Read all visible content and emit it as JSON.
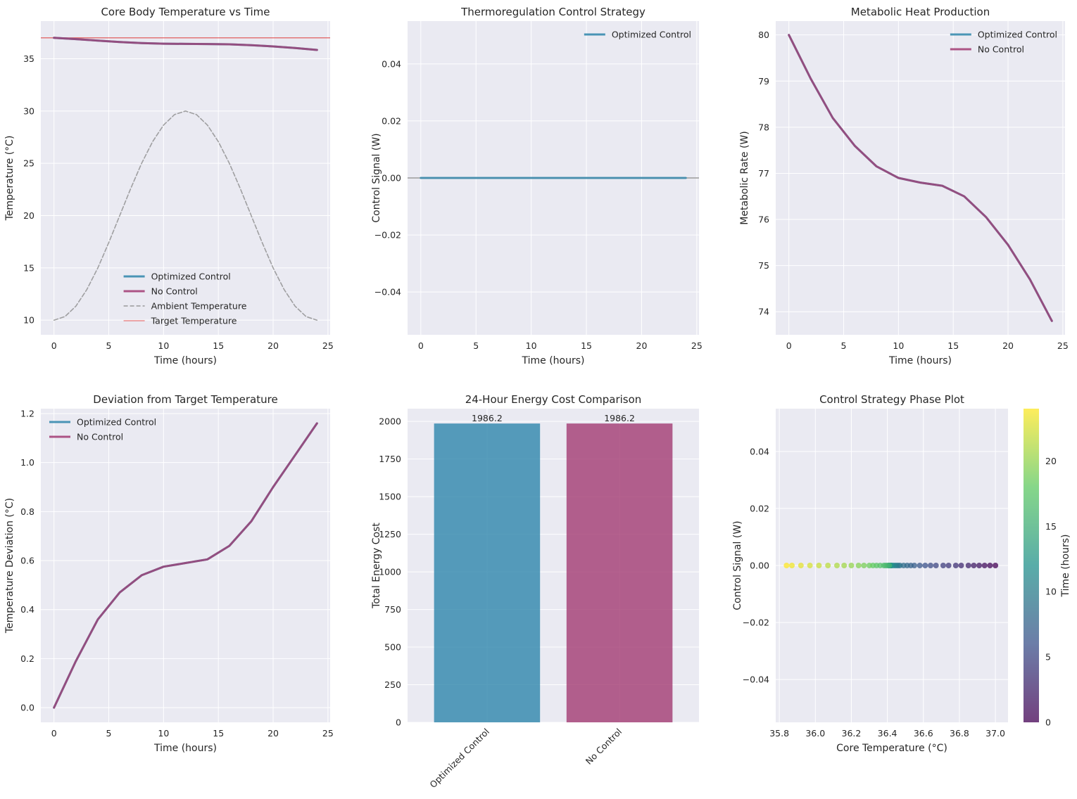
{
  "colors": {
    "optimized": "#2e86ab",
    "no_control": "#a23b72",
    "ambient": "#8c8c8c",
    "target": "#e03c3c",
    "plot_bg": "#eaeaf2",
    "grid": "#ffffff",
    "zero_line": "#9e9e9e"
  },
  "chart_data": [
    {
      "id": "p1",
      "type": "line",
      "title": "Core Body Temperature vs Time",
      "xlabel": "Time (hours)",
      "ylabel": "Temperature (°C)",
      "xlim": [
        -1.2,
        25.2
      ],
      "ylim": [
        8.6,
        38.6
      ],
      "xticks": [
        0,
        5,
        10,
        15,
        20,
        25
      ],
      "yticks": [
        10,
        15,
        20,
        25,
        30,
        35
      ],
      "legend_loc": "lower-center",
      "hlines": [
        {
          "name": "Target Temperature",
          "y": 37.0,
          "color": "target"
        }
      ],
      "series": [
        {
          "name": "Optimized Control",
          "color": "optimized",
          "style": "solid-thick",
          "x": [
            0,
            2,
            4,
            6,
            8,
            10,
            12,
            14,
            16,
            18,
            20,
            22,
            24
          ],
          "y": [
            37.0,
            36.88,
            36.74,
            36.6,
            36.5,
            36.44,
            36.42,
            36.41,
            36.38,
            36.3,
            36.18,
            36.03,
            35.84
          ]
        },
        {
          "name": "No Control",
          "color": "no_control",
          "style": "solid-thick",
          "x": [
            0,
            2,
            4,
            6,
            8,
            10,
            12,
            14,
            16,
            18,
            20,
            22,
            24
          ],
          "y": [
            37.0,
            36.88,
            36.74,
            36.6,
            36.5,
            36.44,
            36.42,
            36.41,
            36.38,
            36.3,
            36.18,
            36.03,
            35.84
          ]
        },
        {
          "name": "Ambient Temperature",
          "color": "ambient",
          "style": "dashed",
          "x": [
            0,
            1,
            2,
            3,
            4,
            5,
            6,
            7,
            8,
            9,
            10,
            11,
            12,
            13,
            14,
            15,
            16,
            17,
            18,
            19,
            20,
            21,
            22,
            23,
            24
          ],
          "y": [
            10.0,
            10.34,
            11.34,
            12.93,
            15.0,
            17.41,
            20.0,
            22.59,
            25.0,
            27.07,
            28.66,
            29.66,
            30.0,
            29.66,
            28.66,
            27.07,
            25.0,
            22.59,
            20.0,
            17.41,
            15.0,
            12.93,
            11.34,
            10.34,
            10.0
          ]
        }
      ]
    },
    {
      "id": "p2",
      "type": "line",
      "title": "Thermoregulation Control Strategy",
      "xlabel": "Time (hours)",
      "ylabel": "Control Signal (W)",
      "xlim": [
        -1.2,
        25.2
      ],
      "ylim": [
        -0.055,
        0.055
      ],
      "xticks": [
        0,
        5,
        10,
        15,
        20,
        25
      ],
      "yticks": [
        -0.04,
        -0.02,
        0.0,
        0.02,
        0.04
      ],
      "ytick_labels": [
        "−0.04",
        "−0.02",
        "0.00",
        "0.02",
        "0.04"
      ],
      "legend_loc": "top-right",
      "hlines": [
        {
          "name": "zero",
          "y": 0,
          "color": "zero_line",
          "full": true
        }
      ],
      "series": [
        {
          "name": "Optimized Control",
          "color": "optimized",
          "style": "solid-thick",
          "x": [
            0,
            24
          ],
          "y": [
            0,
            0
          ]
        }
      ]
    },
    {
      "id": "p3",
      "type": "line",
      "title": "Metabolic Heat Production",
      "xlabel": "Time (hours)",
      "ylabel": "Metabolic Rate (W)",
      "xlim": [
        -1.2,
        25.2
      ],
      "ylim": [
        73.5,
        80.3
      ],
      "xticks": [
        0,
        5,
        10,
        15,
        20,
        25
      ],
      "yticks": [
        74,
        75,
        76,
        77,
        78,
        79,
        80
      ],
      "legend_loc": "top-right",
      "series": [
        {
          "name": "Optimized Control",
          "color": "optimized",
          "style": "solid-thick",
          "x": [
            0,
            2,
            4,
            6,
            8,
            10,
            12,
            14,
            16,
            18,
            20,
            22,
            24
          ],
          "y": [
            80.0,
            79.05,
            78.2,
            77.6,
            77.15,
            76.9,
            76.8,
            76.73,
            76.5,
            76.05,
            75.45,
            74.7,
            73.8
          ]
        },
        {
          "name": "No Control",
          "color": "no_control",
          "style": "solid-thick",
          "x": [
            0,
            2,
            4,
            6,
            8,
            10,
            12,
            14,
            16,
            18,
            20,
            22,
            24
          ],
          "y": [
            80.0,
            79.05,
            78.2,
            77.6,
            77.15,
            76.9,
            76.8,
            76.73,
            76.5,
            76.05,
            75.45,
            74.7,
            73.8
          ]
        }
      ]
    },
    {
      "id": "p4",
      "type": "line",
      "title": "Deviation from Target Temperature",
      "xlabel": "Time (hours)",
      "ylabel": "Temperature Deviation (°C)",
      "xlim": [
        -1.2,
        25.2
      ],
      "ylim": [
        -0.06,
        1.22
      ],
      "xticks": [
        0,
        5,
        10,
        15,
        20,
        25
      ],
      "yticks": [
        0.0,
        0.2,
        0.4,
        0.6,
        0.8,
        1.0,
        1.2
      ],
      "ytick_labels": [
        "0.0",
        "0.2",
        "0.4",
        "0.6",
        "0.8",
        "1.0",
        "1.2"
      ],
      "legend_loc": "top-left",
      "series": [
        {
          "name": "Optimized Control",
          "color": "optimized",
          "style": "solid-thick",
          "x": [
            0,
            2,
            4,
            6,
            8,
            10,
            12,
            14,
            16,
            18,
            20,
            22,
            24
          ],
          "y": [
            0.0,
            0.19,
            0.36,
            0.47,
            0.54,
            0.575,
            0.59,
            0.605,
            0.66,
            0.76,
            0.9,
            1.03,
            1.16
          ]
        },
        {
          "name": "No Control",
          "color": "no_control",
          "style": "solid-thick",
          "x": [
            0,
            2,
            4,
            6,
            8,
            10,
            12,
            14,
            16,
            18,
            20,
            22,
            24
          ],
          "y": [
            0.0,
            0.19,
            0.36,
            0.47,
            0.54,
            0.575,
            0.59,
            0.605,
            0.66,
            0.76,
            0.9,
            1.03,
            1.16
          ]
        }
      ]
    },
    {
      "id": "p5",
      "type": "bar",
      "title": "24-Hour Energy Cost Comparison",
      "xlabel": "",
      "ylabel": "Total Energy Cost",
      "categories": [
        "Optimized Control",
        "No Control"
      ],
      "values": [
        1986.2,
        1986.2
      ],
      "value_labels": [
        "1986.2",
        "1986.2"
      ],
      "bar_colors": [
        "optimized",
        "no_control"
      ],
      "ylim": [
        0,
        2085
      ],
      "yticks": [
        0,
        250,
        500,
        750,
        1000,
        1250,
        1500,
        1750,
        2000
      ],
      "xtick_rotation": 45
    },
    {
      "id": "p6",
      "type": "scatter",
      "title": "Control Strategy Phase Plot",
      "xlabel": "Core Temperature (°C)",
      "ylabel": "Control Signal (W)",
      "xlim": [
        35.78,
        37.07
      ],
      "ylim": [
        -0.055,
        0.055
      ],
      "xticks": [
        35.8,
        36.0,
        36.2,
        36.4,
        36.6,
        36.8,
        37.0
      ],
      "xtick_labels": [
        "35.8",
        "36.0",
        "36.2",
        "36.4",
        "36.6",
        "36.8",
        "37.0"
      ],
      "yticks": [
        -0.04,
        -0.02,
        0.0,
        0.02,
        0.04
      ],
      "ytick_labels": [
        "−0.04",
        "−0.02",
        "0.00",
        "0.02",
        "0.04"
      ],
      "colorbar": {
        "label": "Time (hours)",
        "min": 0,
        "max": 24,
        "ticks": [
          0,
          5,
          10,
          15,
          20
        ],
        "colormap": "viridis"
      },
      "points": {
        "x": [
          37.0,
          36.97,
          36.94,
          36.91,
          36.88,
          36.85,
          36.81,
          36.78,
          36.74,
          36.71,
          36.67,
          36.64,
          36.61,
          36.58,
          36.55,
          36.53,
          36.51,
          36.49,
          36.47,
          36.46,
          36.45,
          36.44,
          36.43,
          36.42,
          36.42,
          36.42,
          36.41,
          36.41,
          36.41,
          36.41,
          36.41,
          36.4,
          36.39,
          36.38,
          36.36,
          36.34,
          36.32,
          36.3,
          36.27,
          36.24,
          36.2,
          36.16,
          36.12,
          36.07,
          36.02,
          35.97,
          35.92,
          35.87,
          35.84
        ],
        "y": [
          0,
          0,
          0,
          0,
          0,
          0,
          0,
          0,
          0,
          0,
          0,
          0,
          0,
          0,
          0,
          0,
          0,
          0,
          0,
          0,
          0,
          0,
          0,
          0,
          0,
          0,
          0,
          0,
          0,
          0,
          0,
          0,
          0,
          0,
          0,
          0,
          0,
          0,
          0,
          0,
          0,
          0,
          0,
          0,
          0,
          0,
          0,
          0,
          0
        ],
        "t": [
          0,
          0.5,
          1,
          1.5,
          2,
          2.5,
          3,
          3.5,
          4,
          4.5,
          5,
          5.5,
          6,
          6.5,
          7,
          7.5,
          8,
          8.5,
          9,
          9.5,
          10,
          10.5,
          11,
          11.5,
          12,
          12.5,
          13,
          13.5,
          14,
          14.5,
          15,
          15.5,
          16,
          16.5,
          17,
          17.5,
          18,
          18.5,
          19,
          19.5,
          20,
          20.5,
          21,
          21.5,
          22,
          22.5,
          23,
          23.5,
          24
        ]
      }
    }
  ]
}
